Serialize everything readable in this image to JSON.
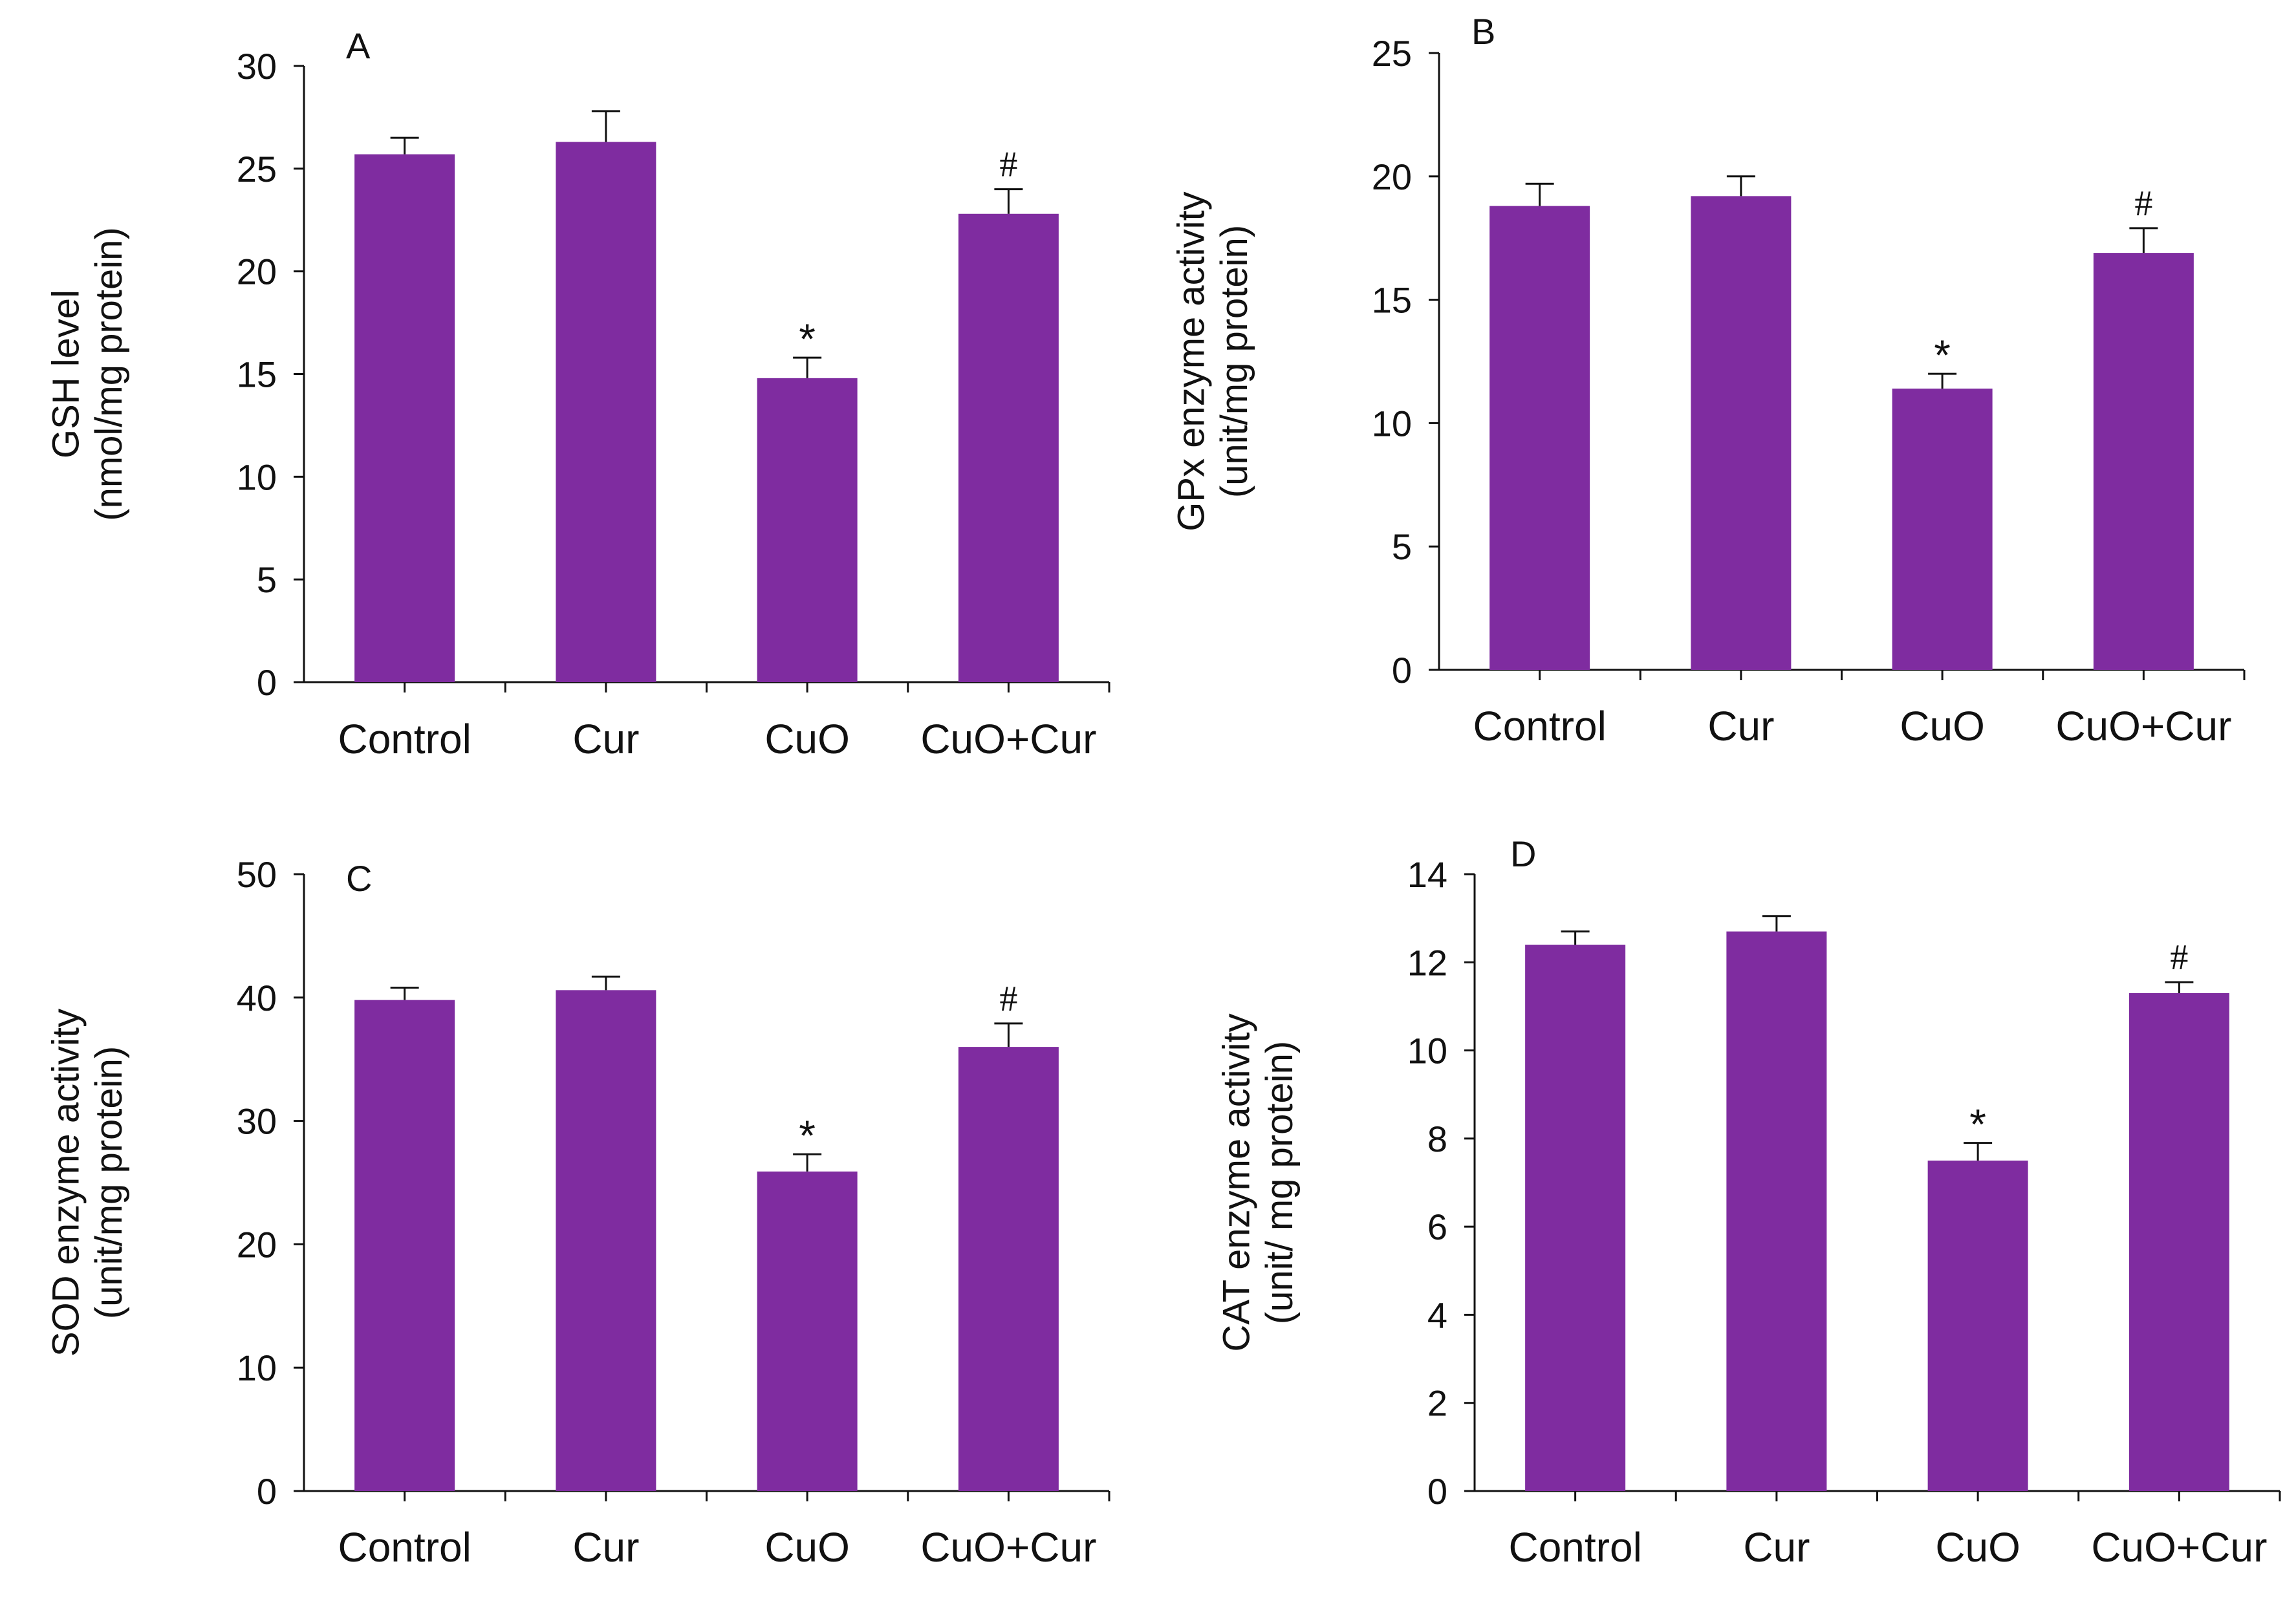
{
  "colors": {
    "bar": "#7f2ca0",
    "axis": "#111111"
  },
  "chart_data": [
    {
      "id": "A",
      "type": "bar",
      "panel_label": "A",
      "categories": [
        "Control",
        "Cur",
        "CuO",
        "CuO+Cur"
      ],
      "values": [
        25.7,
        26.3,
        14.8,
        22.8
      ],
      "errors": [
        0.8,
        1.5,
        1.0,
        1.2
      ],
      "significance": [
        "",
        "",
        "*",
        "#"
      ],
      "ylabel_lines": [
        "GSH level",
        "(nmol/mg protein)"
      ],
      "ylim": [
        0,
        30
      ],
      "yticks": [
        0,
        5,
        10,
        15,
        20,
        25,
        30
      ]
    },
    {
      "id": "B",
      "type": "bar",
      "panel_label": "B",
      "categories": [
        "Control",
        "Cur",
        "CuO",
        "CuO+Cur"
      ],
      "values": [
        18.8,
        19.2,
        11.4,
        16.9
      ],
      "errors": [
        0.9,
        0.8,
        0.6,
        1.0
      ],
      "significance": [
        "",
        "",
        "*",
        "#"
      ],
      "ylabel_lines": [
        "GPx enzyme activity",
        "(unit/mg protein)"
      ],
      "ylim": [
        0,
        25
      ],
      "yticks": [
        0,
        5,
        10,
        15,
        20,
        25
      ]
    },
    {
      "id": "C",
      "type": "bar",
      "panel_label": "C",
      "categories": [
        "Control",
        "Cur",
        "CuO",
        "CuO+Cur"
      ],
      "values": [
        39.8,
        40.6,
        25.9,
        36.0
      ],
      "errors": [
        1.0,
        1.1,
        1.4,
        1.9
      ],
      "significance": [
        "",
        "",
        "*",
        "#"
      ],
      "ylabel_lines": [
        "SOD enzyme activity",
        "(unit/mg protein)"
      ],
      "ylim": [
        0,
        50
      ],
      "yticks": [
        0,
        10,
        20,
        30,
        40,
        50
      ]
    },
    {
      "id": "D",
      "type": "bar",
      "panel_label": "D",
      "categories": [
        "Control",
        "Cur",
        "CuO",
        "CuO+Cur"
      ],
      "values": [
        12.4,
        12.7,
        7.5,
        11.3
      ],
      "errors": [
        0.3,
        0.35,
        0.4,
        0.25
      ],
      "significance": [
        "",
        "",
        "*",
        "#"
      ],
      "ylabel_lines": [
        "CAT enzyme activity",
        "(unit/ mg protein)"
      ],
      "ylim": [
        0,
        14
      ],
      "yticks": [
        0,
        2,
        4,
        6,
        8,
        10,
        12,
        14
      ]
    }
  ]
}
